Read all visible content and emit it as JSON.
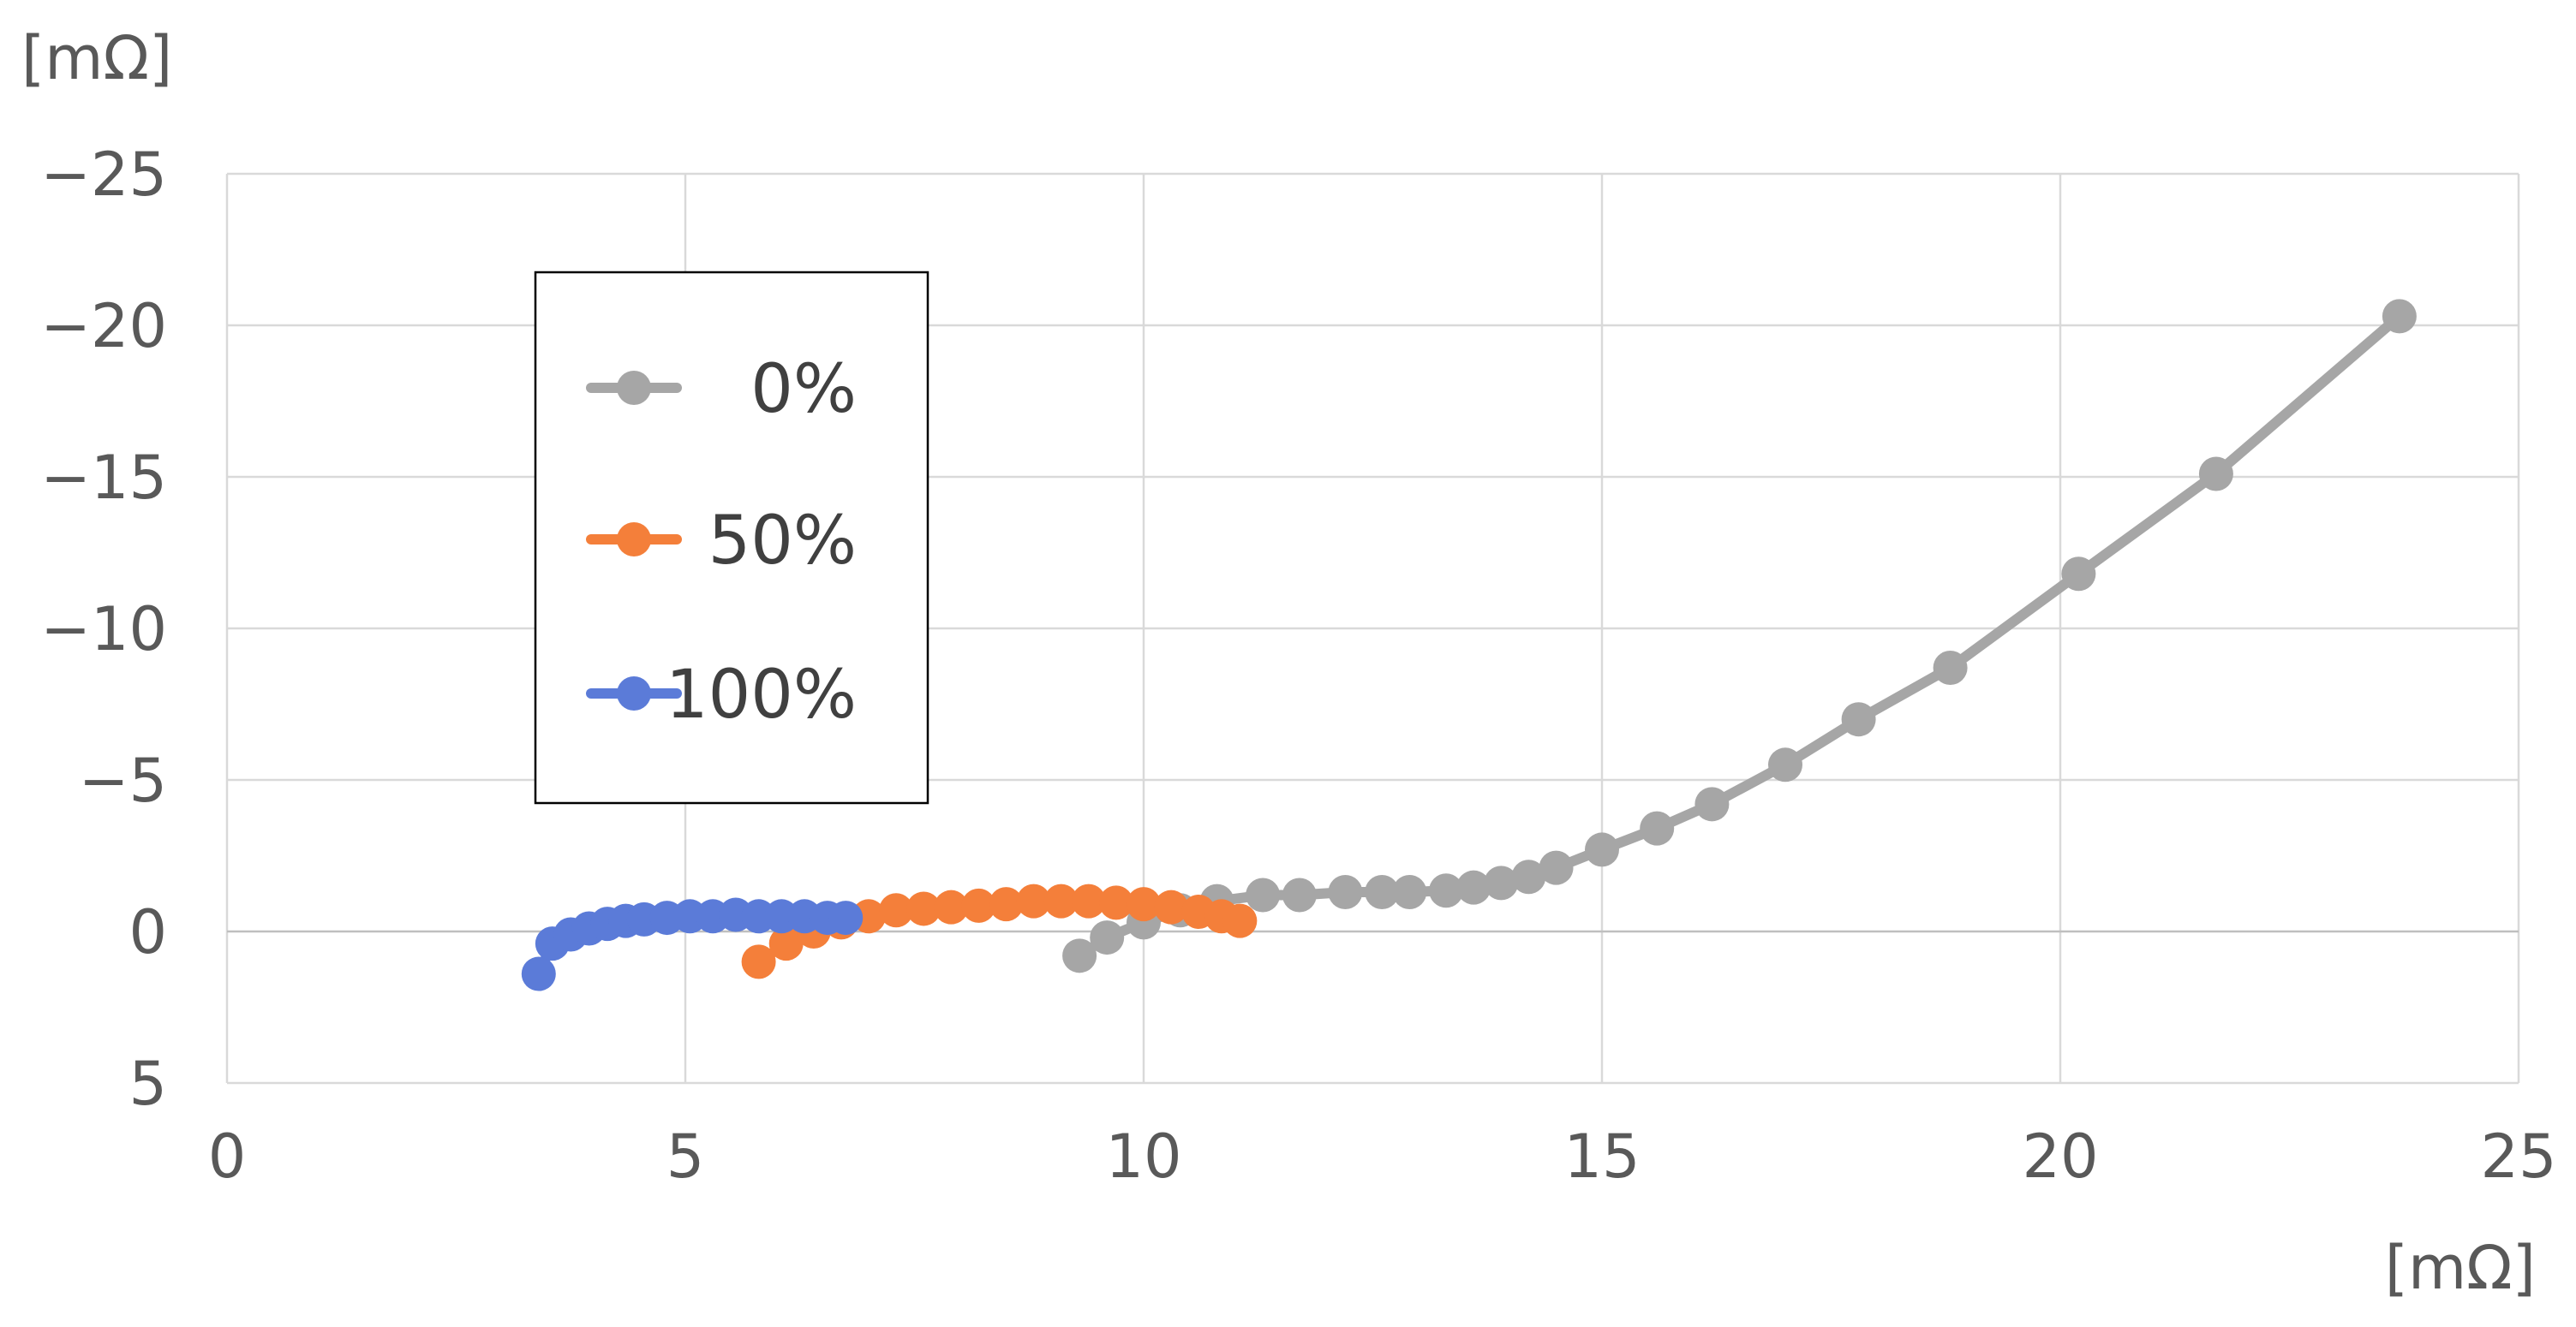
{
  "chart_data": {
    "type": "scatter",
    "xlabel": "[mΩ]",
    "ylabel": "[mΩ]",
    "xlim": [
      0,
      25
    ],
    "ylim": [
      5,
      -25
    ],
    "x_ticks": [
      0,
      5,
      10,
      15,
      20,
      25
    ],
    "y_ticks": [
      -25,
      -20,
      -15,
      -10,
      -5,
      0,
      5
    ],
    "x_tick_labels": [
      "0",
      "5",
      "10",
      "15",
      "20",
      "25"
    ],
    "y_tick_labels": [
      "−25",
      "−20",
      "−15",
      "−10",
      "−5",
      "0",
      "5"
    ],
    "grid": true,
    "legend_position": "upper-left",
    "lines_connected": true,
    "series": [
      {
        "name": "0%",
        "color": "#a6a6a6",
        "points": [
          [
            9.3,
            0.8
          ],
          [
            9.6,
            0.2
          ],
          [
            10.0,
            -0.3
          ],
          [
            10.4,
            -0.7
          ],
          [
            10.8,
            -1.0
          ],
          [
            11.3,
            -1.2
          ],
          [
            11.7,
            -1.2
          ],
          [
            12.2,
            -1.3
          ],
          [
            12.6,
            -1.3
          ],
          [
            12.9,
            -1.3
          ],
          [
            13.3,
            -1.35
          ],
          [
            13.6,
            -1.45
          ],
          [
            13.9,
            -1.6
          ],
          [
            14.2,
            -1.8
          ],
          [
            14.5,
            -2.1
          ],
          [
            15.0,
            -2.7
          ],
          [
            15.6,
            -3.4
          ],
          [
            16.2,
            -4.2
          ],
          [
            17.0,
            -5.5
          ],
          [
            17.8,
            -7.0
          ],
          [
            18.8,
            -8.7
          ],
          [
            20.2,
            -11.8
          ],
          [
            21.7,
            -15.1
          ],
          [
            23.7,
            -20.3
          ]
        ]
      },
      {
        "name": "50%",
        "color": "#f47f3a",
        "points": [
          [
            5.8,
            1.0
          ],
          [
            6.1,
            0.4
          ],
          [
            6.4,
            0.0
          ],
          [
            6.7,
            -0.3
          ],
          [
            7.0,
            -0.5
          ],
          [
            7.3,
            -0.7
          ],
          [
            7.6,
            -0.75
          ],
          [
            7.9,
            -0.8
          ],
          [
            8.2,
            -0.85
          ],
          [
            8.5,
            -0.9
          ],
          [
            8.8,
            -1.0
          ],
          [
            9.1,
            -1.0
          ],
          [
            9.4,
            -1.0
          ],
          [
            9.7,
            -0.95
          ],
          [
            10.0,
            -0.9
          ],
          [
            10.3,
            -0.8
          ],
          [
            10.6,
            -0.65
          ],
          [
            10.85,
            -0.5
          ],
          [
            11.05,
            -0.35
          ]
        ]
      },
      {
        "name": "100%",
        "color": "#5b7bd8",
        "points": [
          [
            3.4,
            1.4
          ],
          [
            3.55,
            0.4
          ],
          [
            3.75,
            0.1
          ],
          [
            3.95,
            -0.1
          ],
          [
            4.15,
            -0.25
          ],
          [
            4.35,
            -0.35
          ],
          [
            4.55,
            -0.4
          ],
          [
            4.8,
            -0.45
          ],
          [
            5.05,
            -0.5
          ],
          [
            5.3,
            -0.5
          ],
          [
            5.55,
            -0.55
          ],
          [
            5.8,
            -0.5
          ],
          [
            6.05,
            -0.5
          ],
          [
            6.3,
            -0.5
          ],
          [
            6.55,
            -0.45
          ],
          [
            6.75,
            -0.45
          ]
        ]
      }
    ]
  }
}
